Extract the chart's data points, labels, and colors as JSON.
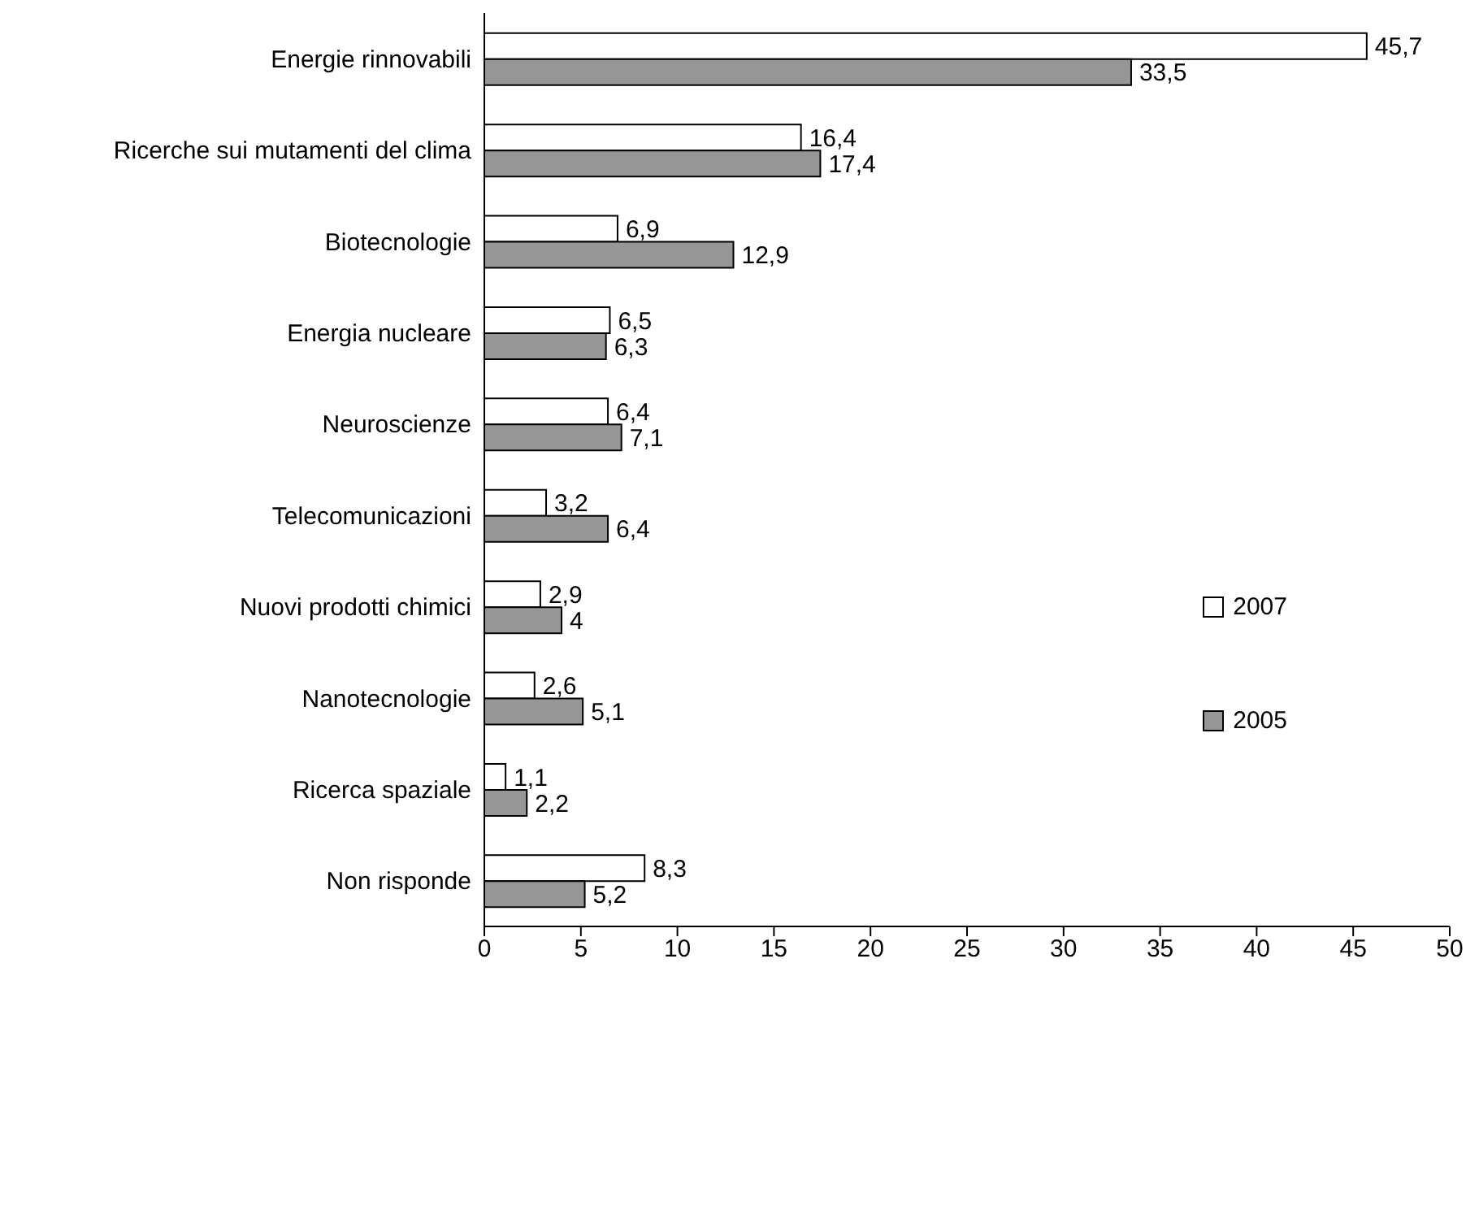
{
  "chart_data": {
    "type": "bar",
    "orientation": "horizontal",
    "categories": [
      "Energie rinnovabili",
      "Ricerche sui mutamenti del clima",
      "Biotecnologie",
      "Energia nucleare",
      "Neuroscienze",
      "Telecomunicazioni",
      "Nuovi prodotti chimici",
      "Nanotecnologie",
      "Ricerca spaziale",
      "Non risponde"
    ],
    "series": [
      {
        "name": "2007",
        "color": "#ffffff",
        "values": [
          45.7,
          16.4,
          6.9,
          6.5,
          6.4,
          3.2,
          2.9,
          2.6,
          1.1,
          8.3
        ],
        "value_labels": [
          "45,7",
          "16,4",
          "6,9",
          "6,5",
          "6,4",
          "3,2",
          "2,9",
          "2,6",
          "1,1",
          "8,3"
        ]
      },
      {
        "name": "2005",
        "color": "#969696",
        "values": [
          33.5,
          17.4,
          12.9,
          6.3,
          7.1,
          6.4,
          4,
          5.1,
          2.2,
          5.2
        ],
        "value_labels": [
          "33,5",
          "17,4",
          "12,9",
          "6,3",
          "7,1",
          "6,4",
          "4",
          "5,1",
          "2,2",
          "5,2"
        ]
      }
    ],
    "xlim": [
      0,
      50
    ],
    "xticks": [
      0,
      5,
      10,
      15,
      20,
      25,
      30,
      35,
      40,
      45,
      50
    ],
    "grid": false,
    "legend": "right"
  }
}
